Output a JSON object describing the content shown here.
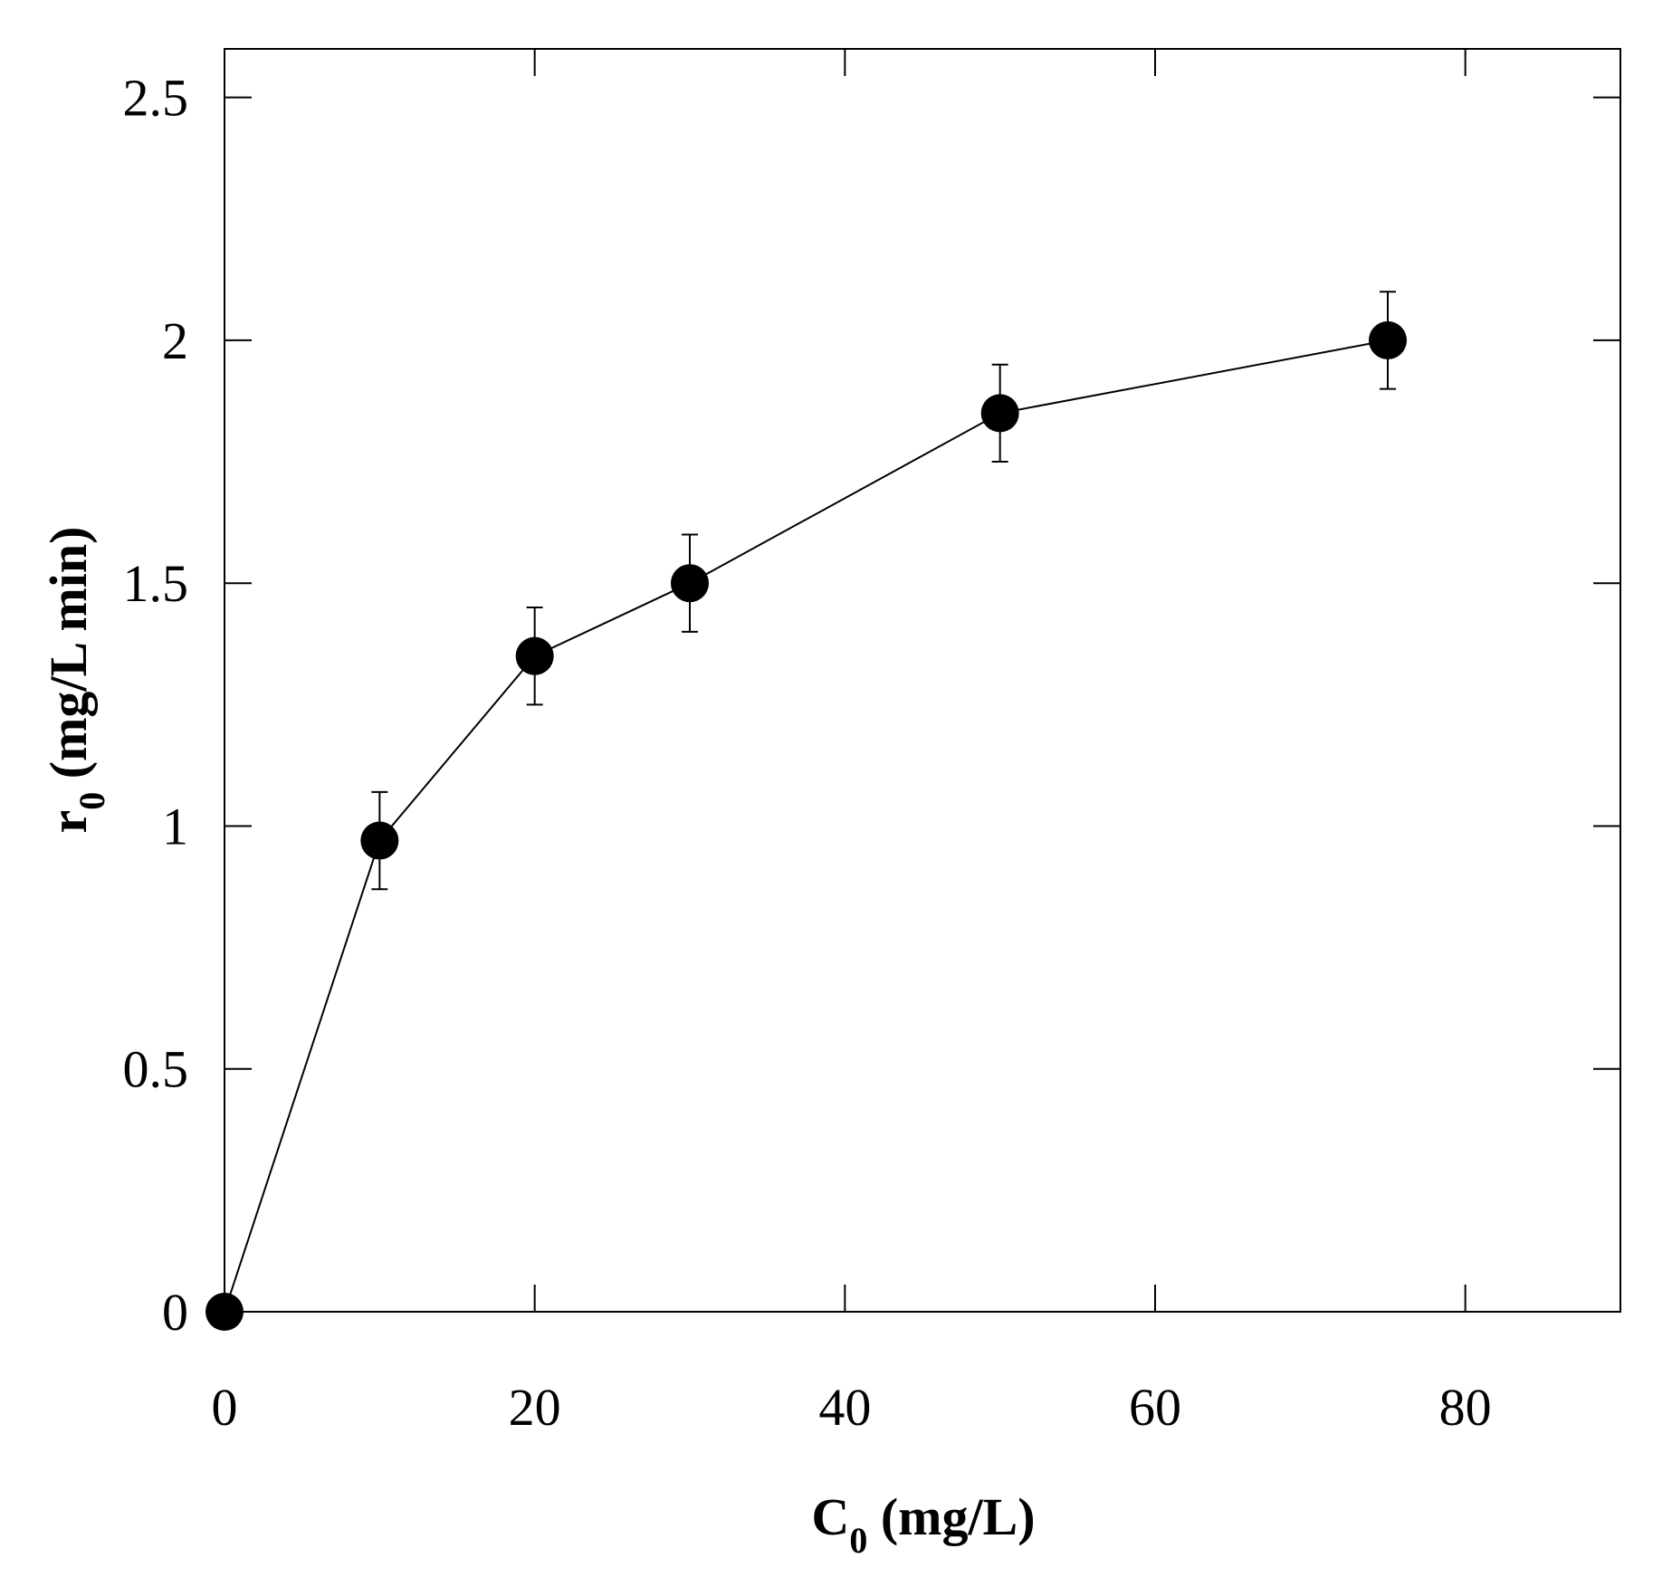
{
  "chart_data": {
    "type": "scatter",
    "x_axis": {
      "label_main": "C",
      "label_sub": "0",
      "label_rest": " (mg/L)",
      "range": [
        0,
        90
      ],
      "ticks": [
        0,
        20,
        40,
        60,
        80
      ],
      "tick_labels": [
        "0",
        "20",
        "40",
        "60",
        "80"
      ]
    },
    "y_axis": {
      "label_main": "r",
      "label_sub": "0",
      "label_rest": " (mg/L min)",
      "range": [
        0,
        2.6
      ],
      "ticks": [
        0,
        0.5,
        1,
        1.5,
        2,
        2.5
      ],
      "tick_labels": [
        "0",
        "0.5",
        "1",
        "1.5",
        "2",
        "2.5"
      ]
    },
    "series": [
      {
        "marker": "filled-circle",
        "connected": true,
        "color": "#000000",
        "points": [
          {
            "x": 0,
            "y": 0,
            "err": 0
          },
          {
            "x": 10,
            "y": 0.97,
            "err": 0.1
          },
          {
            "x": 20,
            "y": 1.35,
            "err": 0.1
          },
          {
            "x": 30,
            "y": 1.5,
            "err": 0.1
          },
          {
            "x": 50,
            "y": 1.85,
            "err": 0.1
          },
          {
            "x": 75,
            "y": 2.0,
            "err": 0.1
          }
        ]
      }
    ],
    "grid": false,
    "legend": "none"
  }
}
